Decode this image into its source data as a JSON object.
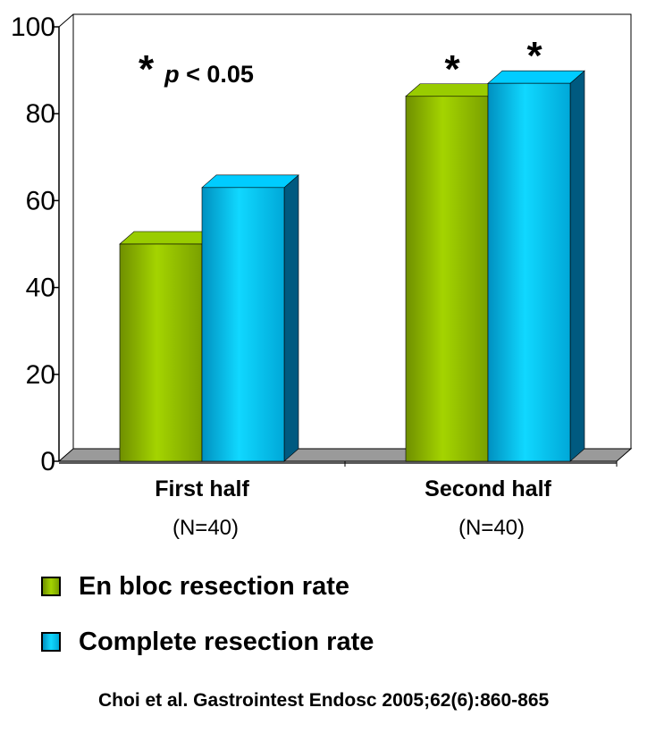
{
  "chart_data": {
    "type": "bar",
    "categories": [
      "First half",
      "Second half"
    ],
    "category_sublabels": [
      "(N=40)",
      "(N=40)"
    ],
    "series": [
      {
        "name": "En bloc resection rate",
        "values": [
          50,
          84
        ],
        "color": "#99cc00",
        "significant": [
          false,
          true
        ]
      },
      {
        "name": "Complete resection rate",
        "values": [
          63,
          87
        ],
        "color": "#00ccff",
        "significant": [
          false,
          true
        ]
      }
    ],
    "ylim": [
      0,
      100
    ],
    "yticks": [
      0,
      20,
      40,
      60,
      80,
      100
    ],
    "significance_marker": "*",
    "annotation": {
      "star": "*",
      "p": "p",
      "rest": " < 0.05"
    },
    "legend_position": "bottom-left"
  },
  "citation": "Choi et al. Gastrointest Endosc 2005;62(6):860-865"
}
